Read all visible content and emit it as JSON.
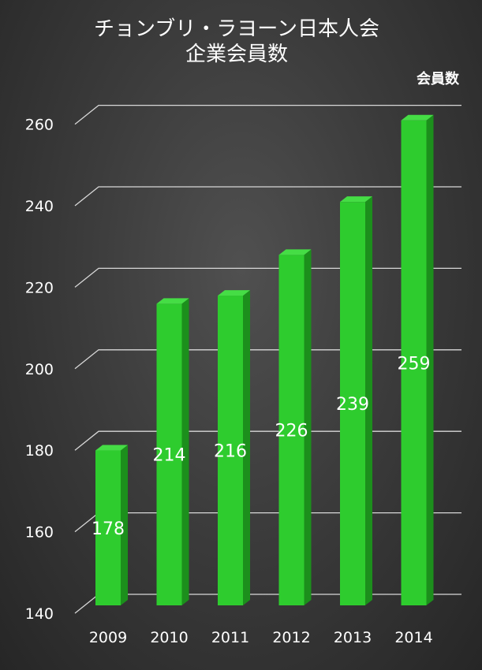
{
  "chart_data": {
    "type": "bar",
    "title": "チョンブリ・ラヨーン日本人会",
    "subtitle": "企業会員数",
    "ylabel": "会員数",
    "xlabel": "",
    "categories": [
      "2009",
      "2010",
      "2011",
      "2012",
      "2013",
      "2014"
    ],
    "values": [
      178,
      214,
      216,
      226,
      239,
      259
    ],
    "data_labels": [
      "178",
      "214",
      "216",
      "226",
      "239",
      "259"
    ],
    "ylim": [
      140,
      260
    ],
    "yticks": [
      "140",
      "160",
      "180",
      "200",
      "220",
      "240",
      "260"
    ],
    "grid": true,
    "three_d": true,
    "bar_color": "#2ecc2e",
    "background_color": "#3a3a3a"
  }
}
